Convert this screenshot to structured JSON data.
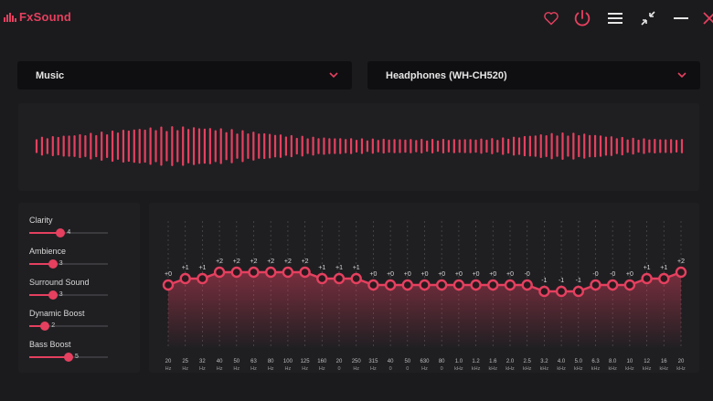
{
  "app": {
    "name": "FxSound",
    "brand_color": "#e5405f"
  },
  "titlebar": {
    "icons": [
      "heart-icon",
      "power-icon",
      "menu-icon",
      "minimize-view-icon",
      "minimize-icon",
      "close-icon"
    ]
  },
  "preset": {
    "value": "Music"
  },
  "output": {
    "value": "Headphones (WH-CH520)"
  },
  "effects": [
    {
      "label": "Clarity",
      "value": "4",
      "level": 4
    },
    {
      "label": "Ambience",
      "value": "3",
      "level": 3
    },
    {
      "label": "Surround Sound",
      "value": "3",
      "level": 3
    },
    {
      "label": "Dynamic Boost",
      "value": "2",
      "level": 2
    },
    {
      "label": "Bass Boost",
      "value": "5",
      "level": 5
    }
  ],
  "effects_max": 10,
  "eq_bands": [
    {
      "gain": "+0",
      "freq": "20",
      "unit": "Hz"
    },
    {
      "gain": "+1",
      "freq": "25",
      "unit": "Hz"
    },
    {
      "gain": "+1",
      "freq": "32",
      "unit": "Hz"
    },
    {
      "gain": "+2",
      "freq": "40",
      "unit": "Hz"
    },
    {
      "gain": "+2",
      "freq": "50",
      "unit": "Hz"
    },
    {
      "gain": "+2",
      "freq": "63",
      "unit": "Hz"
    },
    {
      "gain": "+2",
      "freq": "80",
      "unit": "Hz"
    },
    {
      "gain": "+2",
      "freq": "100",
      "unit": "Hz"
    },
    {
      "gain": "+2",
      "freq": "125",
      "unit": "Hz"
    },
    {
      "gain": "+1",
      "freq": "160",
      "unit": "Hz"
    },
    {
      "gain": "+1",
      "freq": "20",
      "unit": "0"
    },
    {
      "gain": "+1",
      "freq": "250",
      "unit": "Hz"
    },
    {
      "gain": "+0",
      "freq": "315",
      "unit": "Hz"
    },
    {
      "gain": "+0",
      "freq": "40",
      "unit": "0"
    },
    {
      "gain": "+0",
      "freq": "50",
      "unit": "0"
    },
    {
      "gain": "+0",
      "freq": "630",
      "unit": "Hz"
    },
    {
      "gain": "+0",
      "freq": "80",
      "unit": "0"
    },
    {
      "gain": "+0",
      "freq": "1.0",
      "unit": "kHz"
    },
    {
      "gain": "+0",
      "freq": "1.2",
      "unit": "kHz"
    },
    {
      "gain": "+0",
      "freq": "1.6",
      "unit": "kHz"
    },
    {
      "gain": "+0",
      "freq": "2.0",
      "unit": "kHz"
    },
    {
      "gain": "-0",
      "freq": "2.5",
      "unit": "kHz"
    },
    {
      "gain": "-1",
      "freq": "3.2",
      "unit": "kHz"
    },
    {
      "gain": "-1",
      "freq": "4.0",
      "unit": "kHz"
    },
    {
      "gain": "-1",
      "freq": "5.0",
      "unit": "kHz"
    },
    {
      "gain": "-0",
      "freq": "6.3",
      "unit": "kHz"
    },
    {
      "gain": "-0",
      "freq": "8.0",
      "unit": "kHz"
    },
    {
      "gain": "+0",
      "freq": "10",
      "unit": "kHz"
    },
    {
      "gain": "+1",
      "freq": "12",
      "unit": "kHz"
    },
    {
      "gain": "+1",
      "freq": "16",
      "unit": "kHz"
    },
    {
      "gain": "+2",
      "freq": "20",
      "unit": "kHz"
    }
  ]
}
